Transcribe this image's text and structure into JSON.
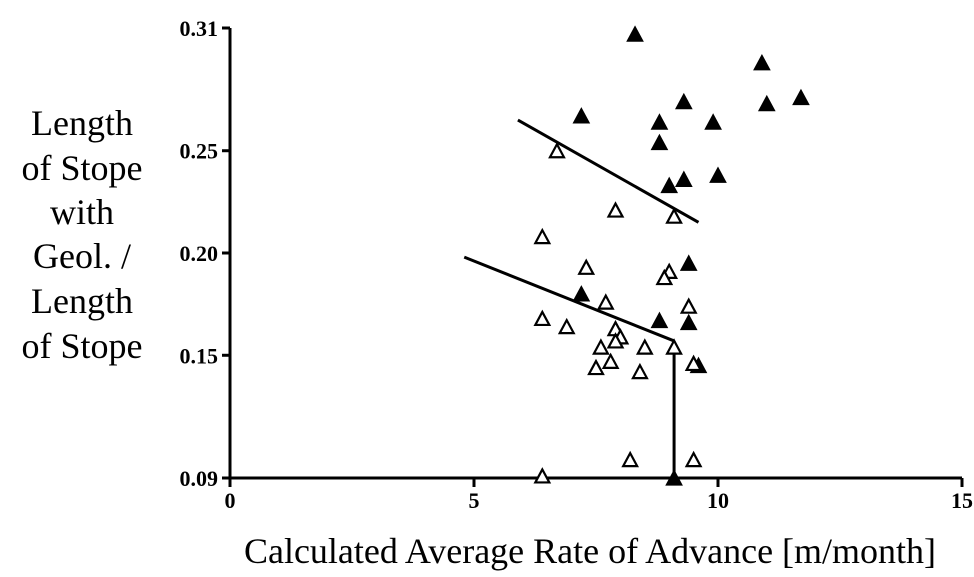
{
  "chart_data": {
    "type": "scatter",
    "title": "",
    "ylabel_lines": [
      "Length",
      "of Stope",
      "with",
      "Geol. /",
      "Length",
      "of Stope"
    ],
    "xlabel": "Calculated Average Rate of Advance [m/month]",
    "xlim": [
      0,
      15
    ],
    "ylim": [
      0.09,
      0.31
    ],
    "x_ticks": [
      0,
      5,
      10,
      15
    ],
    "x_tick_labels": [
      "0",
      "5",
      "10",
      "15"
    ],
    "y_ticks": [
      0.09,
      0.15,
      0.2,
      0.25,
      0.31
    ],
    "y_tick_labels": [
      "0.09",
      "0.15",
      "0.20",
      "0.25",
      "0.31"
    ],
    "grid": false,
    "series": [
      {
        "marker": "filled-triangle",
        "color": "#000000",
        "points": [
          [
            8.3,
            0.307
          ],
          [
            10.9,
            0.293
          ],
          [
            11.7,
            0.276
          ],
          [
            11.0,
            0.273
          ],
          [
            9.3,
            0.274
          ],
          [
            7.2,
            0.267
          ],
          [
            8.8,
            0.264
          ],
          [
            9.9,
            0.264
          ],
          [
            8.8,
            0.254
          ],
          [
            9.3,
            0.236
          ],
          [
            10.0,
            0.238
          ],
          [
            9.0,
            0.233
          ],
          [
            9.4,
            0.195
          ],
          [
            7.2,
            0.18
          ],
          [
            8.8,
            0.167
          ],
          [
            9.4,
            0.166
          ],
          [
            9.6,
            0.145
          ],
          [
            9.1,
            0.09
          ]
        ]
      },
      {
        "marker": "open-triangle",
        "color": "#000000",
        "points": [
          [
            6.7,
            0.25
          ],
          [
            7.9,
            0.221
          ],
          [
            9.1,
            0.218
          ],
          [
            6.4,
            0.208
          ],
          [
            7.3,
            0.193
          ],
          [
            9.0,
            0.191
          ],
          [
            8.9,
            0.188
          ],
          [
            7.7,
            0.176
          ],
          [
            9.4,
            0.174
          ],
          [
            6.4,
            0.168
          ],
          [
            6.9,
            0.164
          ],
          [
            7.9,
            0.163
          ],
          [
            8.0,
            0.159
          ],
          [
            7.9,
            0.157
          ],
          [
            7.6,
            0.154
          ],
          [
            8.5,
            0.154
          ],
          [
            9.1,
            0.154
          ],
          [
            7.5,
            0.144
          ],
          [
            7.8,
            0.147
          ],
          [
            8.4,
            0.142
          ],
          [
            9.5,
            0.146
          ],
          [
            8.2,
            0.099
          ],
          [
            9.5,
            0.099
          ],
          [
            6.4,
            0.091
          ]
        ]
      }
    ],
    "trend_lines": [
      {
        "points": [
          [
            5.9,
            0.265
          ],
          [
            9.6,
            0.215
          ]
        ]
      },
      {
        "points": [
          [
            4.8,
            0.198
          ],
          [
            9.1,
            0.157
          ]
        ]
      }
    ],
    "threshold_line": {
      "points": [
        [
          9.1,
          0.157
        ],
        [
          9.1,
          0.09
        ]
      ]
    }
  }
}
